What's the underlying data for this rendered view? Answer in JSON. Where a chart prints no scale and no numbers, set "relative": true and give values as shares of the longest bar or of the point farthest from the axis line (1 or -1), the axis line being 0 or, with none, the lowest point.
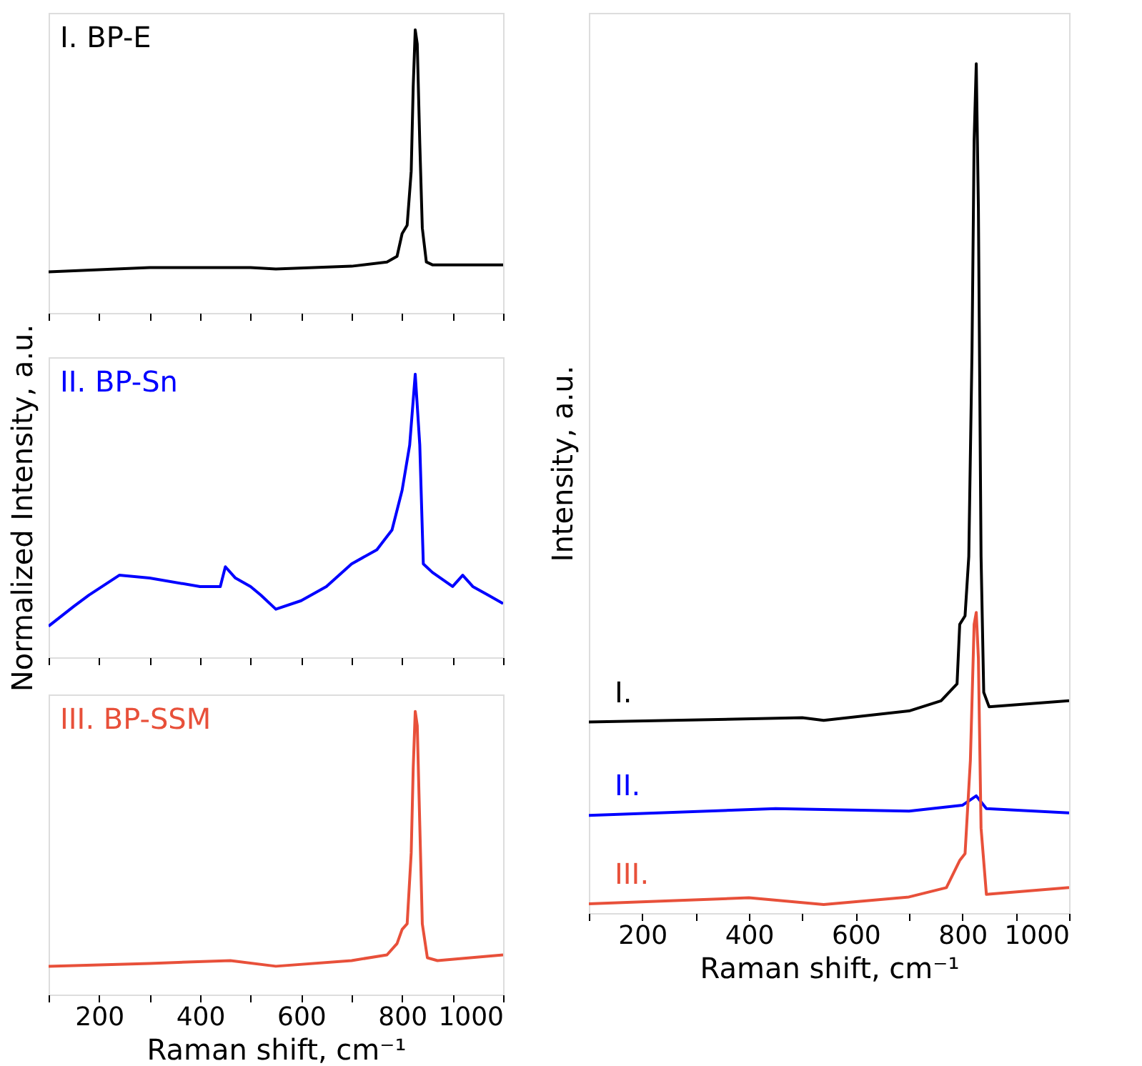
{
  "chart_data": [
    {
      "type": "line",
      "relative": true,
      "tick_labels": false,
      "xlim": [
        100,
        1000
      ],
      "xticks": [
        {
          "value": 100,
          "label": null
        },
        200,
        {
          "value": 300,
          "label": null
        },
        400,
        {
          "value": 500,
          "label": null
        },
        600,
        {
          "value": 700,
          "label": null
        },
        800,
        {
          "value": 900,
          "label": null
        },
        1000
      ],
      "legend": false,
      "grid": false,
      "series": [
        {
          "name": "I. BP-E",
          "color": "#000000",
          "x": [
            100,
            300,
            500,
            550,
            700,
            770,
            790,
            800,
            810,
            818,
            822,
            826,
            830,
            835,
            840,
            848,
            860,
            1000
          ],
          "values": [
            0.145,
            0.16,
            0.16,
            0.155,
            0.165,
            0.18,
            0.2,
            0.28,
            0.31,
            0.5,
            0.8,
            1.0,
            0.95,
            0.6,
            0.3,
            0.18,
            0.17,
            0.17
          ]
        }
      ]
    },
    {
      "type": "line",
      "relative": true,
      "tick_labels": false,
      "ylabel": "Normalized Intensity, a.u.",
      "xlim": [
        100,
        1000
      ],
      "xticks": [
        {
          "value": 100,
          "label": null
        },
        200,
        {
          "value": 300,
          "label": null
        },
        400,
        {
          "value": 500,
          "label": null
        },
        600,
        {
          "value": 700,
          "label": null
        },
        800,
        {
          "value": 900,
          "label": null
        },
        1000
      ],
      "legend": false,
      "grid": false,
      "series": [
        {
          "name": "II. BP-Sn",
          "color": "#0000ff",
          "x": [
            100,
            150,
            180,
            240,
            300,
            400,
            440,
            450,
            470,
            500,
            520,
            550,
            600,
            650,
            700,
            750,
            780,
            800,
            815,
            826,
            835,
            842,
            860,
            900,
            920,
            940,
            970,
            1000
          ],
          "values": [
            0.11,
            0.18,
            0.22,
            0.29,
            0.28,
            0.25,
            0.25,
            0.32,
            0.28,
            0.25,
            0.22,
            0.17,
            0.2,
            0.25,
            0.33,
            0.38,
            0.45,
            0.59,
            0.75,
            1.0,
            0.75,
            0.33,
            0.3,
            0.25,
            0.29,
            0.25,
            0.22,
            0.19
          ]
        }
      ]
    },
    {
      "type": "line",
      "relative": true,
      "tick_labels": "x",
      "xlabel": "Raman shift, cm⁻¹",
      "xlim": [
        100,
        1000
      ],
      "xticks": [
        {
          "value": 100,
          "label": null
        },
        200,
        {
          "value": 300,
          "label": null
        },
        400,
        {
          "value": 500,
          "label": null
        },
        600,
        {
          "value": 700,
          "label": null
        },
        800,
        {
          "value": 900,
          "label": null
        },
        1000
      ],
      "legend": false,
      "grid": false,
      "series": [
        {
          "name": "III. BP-SSM",
          "color": "#e8503a",
          "x": [
            100,
            300,
            460,
            550,
            700,
            770,
            790,
            800,
            810,
            818,
            822,
            826,
            830,
            835,
            840,
            850,
            870,
            1000
          ],
          "values": [
            0.1,
            0.11,
            0.12,
            0.1,
            0.12,
            0.14,
            0.18,
            0.23,
            0.25,
            0.5,
            0.8,
            1.0,
            0.95,
            0.6,
            0.25,
            0.13,
            0.12,
            0.14
          ]
        }
      ]
    },
    {
      "type": "line",
      "relative": true,
      "tick_labels": "x",
      "xlabel": "Raman shift, cm⁻¹",
      "ylabel": "Intensity, a.u.",
      "xlim": [
        100,
        1000
      ],
      "xticks": [
        {
          "value": 100,
          "label": null
        },
        200,
        {
          "value": 300,
          "label": null
        },
        400,
        {
          "value": 500,
          "label": null
        },
        600,
        {
          "value": 700,
          "label": null
        },
        800,
        {
          "value": 900,
          "label": null
        },
        1000
      ],
      "legend": false,
      "grid": false,
      "series": [
        {
          "name": "I.",
          "color": "#000000",
          "x": [
            100,
            500,
            540,
            700,
            760,
            790,
            795,
            805,
            812,
            818,
            822,
            826,
            830,
            835,
            840,
            850,
            1000
          ],
          "values": [
            0.225,
            0.23,
            0.227,
            0.238,
            0.25,
            0.27,
            0.34,
            0.35,
            0.42,
            0.66,
            0.91,
            1.0,
            0.83,
            0.42,
            0.26,
            0.243,
            0.25
          ]
        },
        {
          "name": "II.",
          "color": "#0000ff",
          "x": [
            100,
            450,
            700,
            800,
            826,
            845,
            1000
          ],
          "values": [
            0.115,
            0.123,
            0.12,
            0.127,
            0.138,
            0.123,
            0.118
          ]
        },
        {
          "name": "III.",
          "color": "#e8503a",
          "x": [
            100,
            400,
            540,
            700,
            770,
            795,
            805,
            815,
            822,
            826,
            830,
            835,
            845,
            1000
          ],
          "values": [
            0.011,
            0.018,
            0.01,
            0.019,
            0.03,
            0.062,
            0.07,
            0.18,
            0.34,
            0.354,
            0.3,
            0.1,
            0.022,
            0.03
          ]
        }
      ]
    }
  ]
}
